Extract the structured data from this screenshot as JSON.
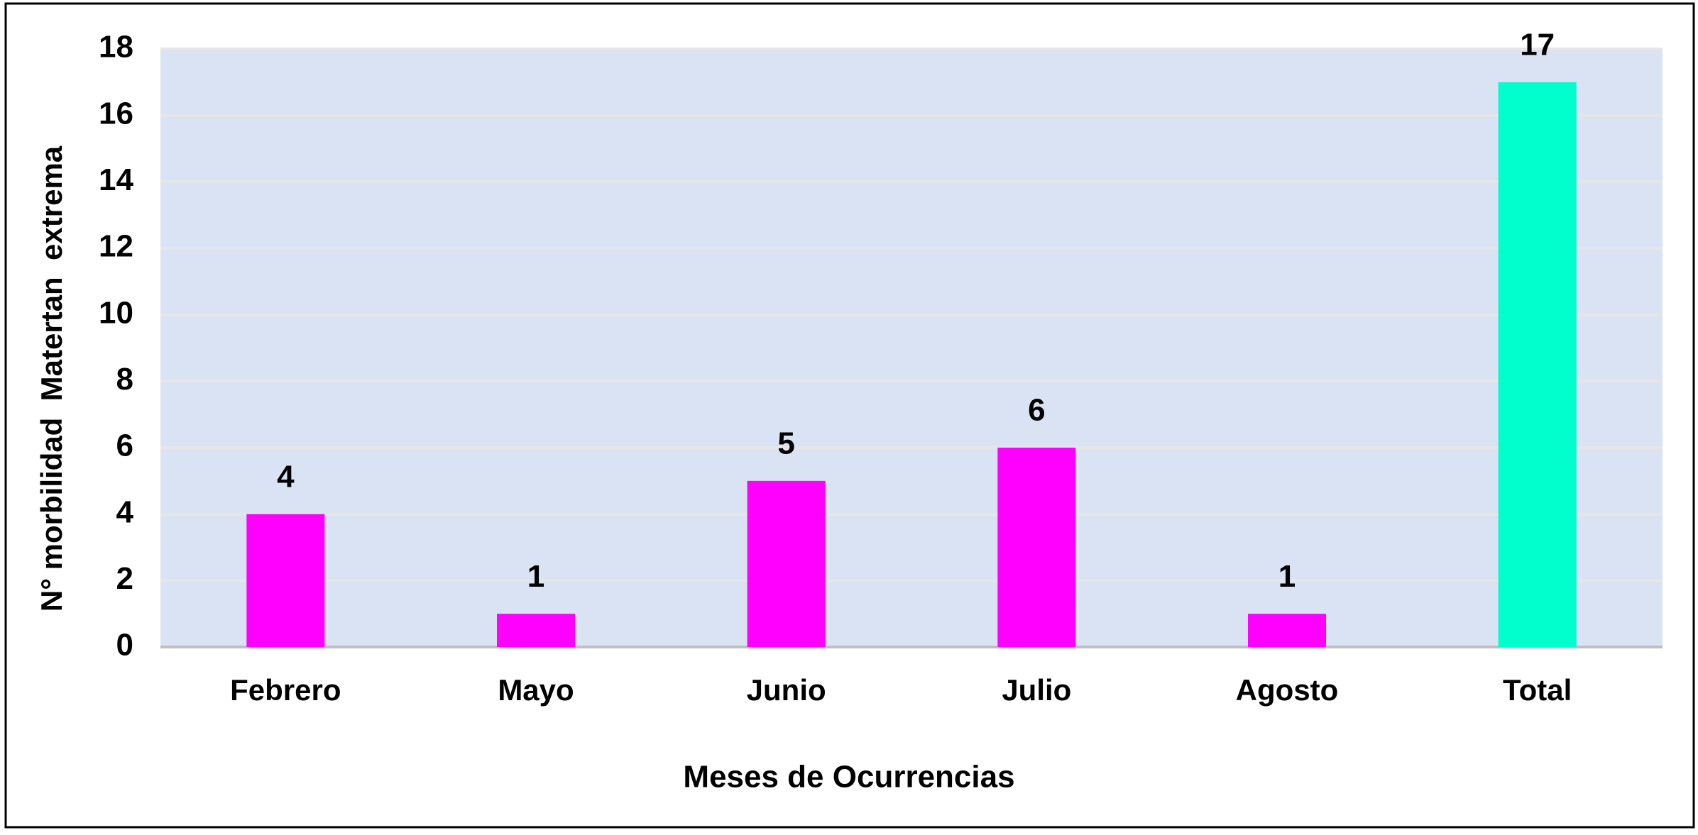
{
  "chart_data": {
    "type": "bar",
    "categories": [
      "Febrero",
      "Mayo",
      "Junio",
      "Julio",
      "Agosto",
      "Total"
    ],
    "values": [
      4,
      1,
      5,
      6,
      1,
      17
    ],
    "colors": [
      "#ff00ff",
      "#ff00ff",
      "#ff00ff",
      "#ff00ff",
      "#ff00ff",
      "#00ffcc"
    ],
    "x_label": "Meses de Ocurrencias",
    "y_label": "N° morbilidad  Matertan  extrema",
    "ylim": [
      0,
      18
    ],
    "yticks": [
      0,
      2,
      4,
      6,
      8,
      10,
      12,
      14,
      16,
      18
    ],
    "grid": true,
    "data_labels": true
  }
}
